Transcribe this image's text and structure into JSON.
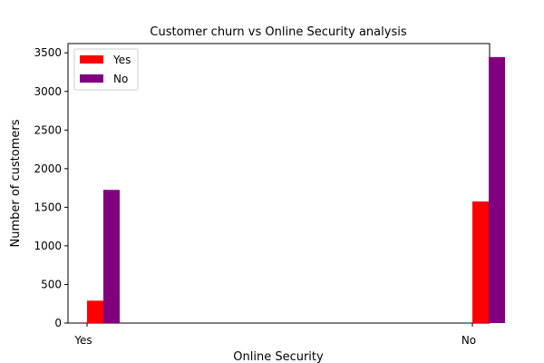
{
  "chart_data": {
    "type": "bar",
    "title": "Customer churn vs Online Security analysis",
    "xlabel": "Online Security",
    "ylabel": "Number of customers",
    "categories": [
      "Yes",
      "No"
    ],
    "series": [
      {
        "name": "Yes",
        "values": [
          290,
          1575
        ],
        "color": "#ff0000"
      },
      {
        "name": "No",
        "values": [
          1725,
          3445
        ],
        "color": "#800080"
      }
    ],
    "yticks": [
      0,
      500,
      1000,
      1500,
      2000,
      2500,
      3000,
      3500
    ],
    "ylim": [
      0,
      3620
    ],
    "legend_position": "top-left",
    "grid": false
  }
}
